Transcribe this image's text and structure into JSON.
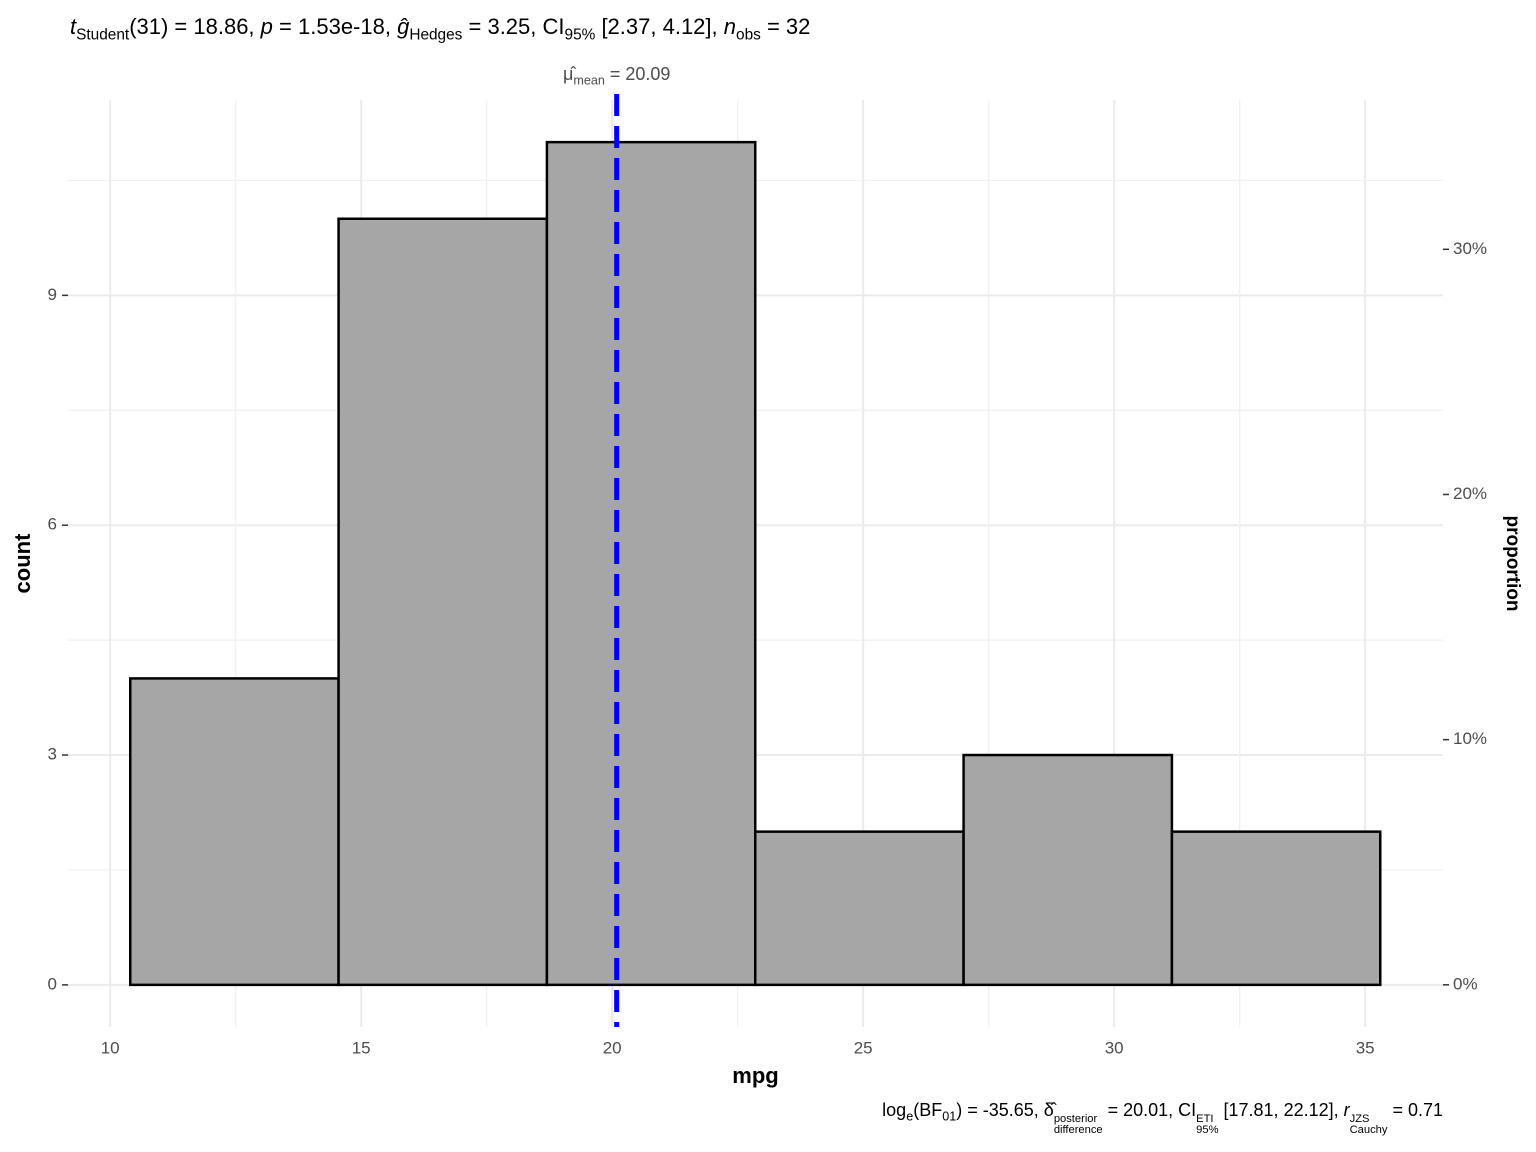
{
  "chart_data": {
    "type": "histogram",
    "title": [
      {
        "text": "t",
        "style": "italic"
      },
      {
        "text": "Student",
        "style": "sub"
      },
      {
        "text": "(31) = 18.86, "
      },
      {
        "text": "p",
        "style": "italic"
      },
      {
        "text": " = 1.53e-18, "
      },
      {
        "text": "ĝ",
        "style": "italic"
      },
      {
        "text": "Hedges",
        "style": "sub"
      },
      {
        "text": " = 3.25, CI"
      },
      {
        "text": "95%",
        "style": "sub"
      },
      {
        "text": " [2.37, 4.12], "
      },
      {
        "text": "n",
        "style": "italic"
      },
      {
        "text": "obs",
        "style": "sub"
      },
      {
        "text": " = 32"
      }
    ],
    "caption": [
      {
        "text": "log"
      },
      {
        "text": "e",
        "style": "sub"
      },
      {
        "text": "(BF"
      },
      {
        "text": "01",
        "style": "sub"
      },
      {
        "text": ") = -35.65, "
      },
      {
        "text": "δ̂"
      },
      {
        "sup": "posterior",
        "sub": "difference"
      },
      {
        "text": " = 20.01, CI"
      },
      {
        "sup": "ETI",
        "sub": "95%"
      },
      {
        "text": " [17.81, 22.12], "
      },
      {
        "text": "r",
        "style": "italic"
      },
      {
        "sup": "JZS",
        "sub": "Cauchy"
      },
      {
        "text": " = 0.71"
      }
    ],
    "x_label": "mpg",
    "y_label": "count",
    "y2_label": "proportion",
    "bins": [
      10.4,
      14.55,
      18.7,
      22.85,
      27.0,
      31.15,
      35.3
    ],
    "values": [
      4,
      10,
      11,
      2,
      3,
      2
    ],
    "color": "#a6a6a6",
    "edge_color": "#000000",
    "xlim": [
      9.16,
      36.55
    ],
    "xticks": [
      10,
      15,
      20,
      25,
      30,
      35
    ],
    "ylim": [
      -0.55,
      11.55
    ],
    "yticks": [
      0,
      3,
      6,
      9
    ],
    "y2lim": [
      -1.72,
      36.09
    ],
    "y2ticks": [
      {
        "value": 0,
        "label": "0%"
      },
      {
        "value": 10,
        "label": "10%"
      },
      {
        "value": 20,
        "label": "20%"
      },
      {
        "value": 30,
        "label": "30%"
      }
    ],
    "grid": true,
    "vline": {
      "x": 20.09,
      "color": "#0000ff",
      "label": [
        {
          "text": "μ̂"
        },
        {
          "text": "mean",
          "style": "sub"
        },
        {
          "text": " = 20.09"
        }
      ]
    }
  }
}
